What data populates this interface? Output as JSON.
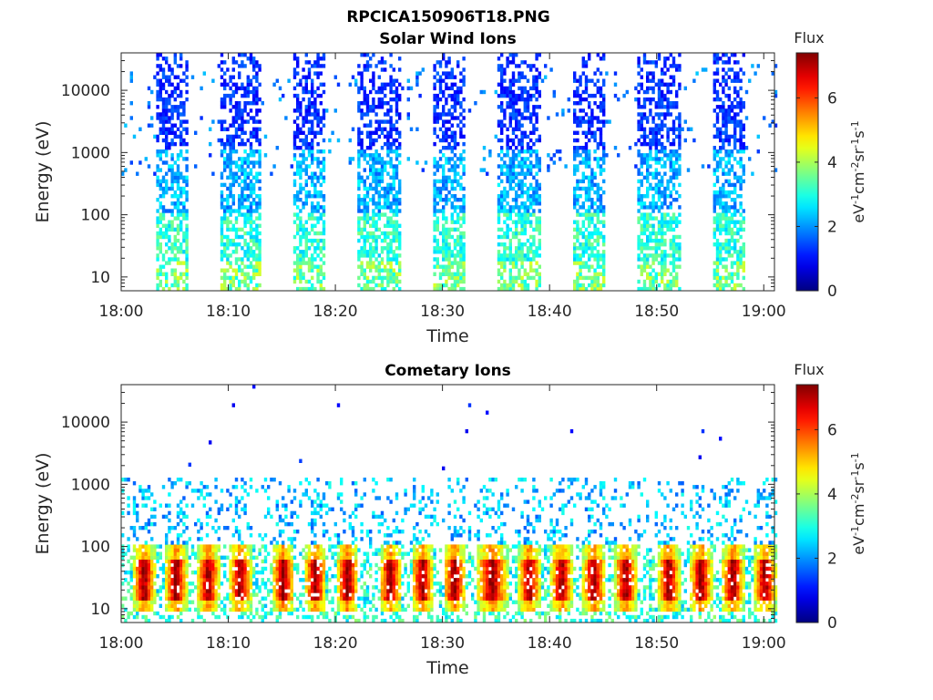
{
  "figure": {
    "title": "RPCICA150906T18.PNG"
  },
  "chart_data": [
    {
      "type": "heatmap",
      "title": "Solar Wind Ions",
      "xlabel": "Time",
      "ylabel": "Energy (eV)",
      "x_ticks": [
        "18:00",
        "18:10",
        "18:20",
        "18:30",
        "18:40",
        "18:50",
        "19:00"
      ],
      "x_range": [
        "18:00",
        "19:01"
      ],
      "y_scale": "log",
      "y_ticks": [
        10,
        100,
        1000,
        10000
      ],
      "y_range": [
        6,
        40000
      ],
      "colorbar": {
        "title": "Flux",
        "label": "eV-1cm-2sr-1s-1",
        "ticks": [
          0,
          2,
          4,
          6
        ],
        "range": [
          0,
          7.4
        ],
        "colormap": "jet"
      },
      "bursts": [
        {
          "start": "18:03",
          "end": "18:06"
        },
        {
          "start": "18:09",
          "end": "18:13"
        },
        {
          "start": "18:16",
          "end": "18:19"
        },
        {
          "start": "18:22",
          "end": "18:26"
        },
        {
          "start": "18:29",
          "end": "18:32"
        },
        {
          "start": "18:35",
          "end": "18:39"
        },
        {
          "start": "18:42",
          "end": "18:45"
        },
        {
          "start": "18:48",
          "end": "18:52"
        },
        {
          "start": "18:55",
          "end": "18:58"
        }
      ],
      "peak_flux": 4.7
    },
    {
      "type": "heatmap",
      "title": "Cometary Ions",
      "xlabel": "Time",
      "ylabel": "Energy (eV)",
      "x_ticks": [
        "18:00",
        "18:10",
        "18:20",
        "18:30",
        "18:40",
        "18:50",
        "19:00"
      ],
      "x_range": [
        "18:00",
        "19:01"
      ],
      "y_scale": "log",
      "y_ticks": [
        10,
        100,
        1000,
        10000
      ],
      "y_range": [
        6,
        40000
      ],
      "colorbar": {
        "title": "Flux",
        "label": "eV-1cm-2sr-1s-1",
        "ticks": [
          0,
          2,
          4,
          6
        ],
        "range": [
          0,
          7.4
        ],
        "colormap": "jet"
      },
      "bursts": [
        {
          "start": "18:01",
          "end": "18:03"
        },
        {
          "start": "18:04",
          "end": "18:06"
        },
        {
          "start": "18:07",
          "end": "18:09"
        },
        {
          "start": "18:10",
          "end": "18:12"
        },
        {
          "start": "18:14",
          "end": "18:16"
        },
        {
          "start": "18:17",
          "end": "18:19"
        },
        {
          "start": "18:20",
          "end": "18:22"
        },
        {
          "start": "18:24",
          "end": "18:26"
        },
        {
          "start": "18:27",
          "end": "18:29"
        },
        {
          "start": "18:30",
          "end": "18:32"
        },
        {
          "start": "18:33",
          "end": "18:36"
        },
        {
          "start": "18:37",
          "end": "18:39"
        },
        {
          "start": "18:40",
          "end": "18:42"
        },
        {
          "start": "18:43",
          "end": "18:45"
        },
        {
          "start": "18:46",
          "end": "18:48"
        },
        {
          "start": "18:50",
          "end": "18:52"
        },
        {
          "start": "18:53",
          "end": "18:55"
        },
        {
          "start": "18:56",
          "end": "18:58"
        },
        {
          "start": "18:59",
          "end": "19:01"
        }
      ],
      "peak_flux": 7.2
    }
  ]
}
